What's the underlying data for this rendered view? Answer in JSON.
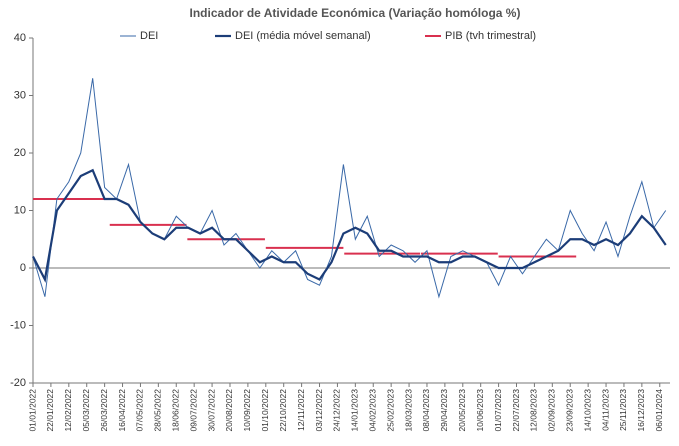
{
  "chart_data": {
    "type": "line",
    "title": "Indicador de Atividade Económica (Variação homóloga %)",
    "x": [
      "01/01/2022",
      "15/01/2022",
      "29/01/2022",
      "12/02/2022",
      "26/02/2022",
      "12/03/2022",
      "26/03/2022",
      "09/04/2022",
      "23/04/2022",
      "07/05/2022",
      "21/05/2022",
      "04/06/2022",
      "18/06/2022",
      "02/07/2022",
      "16/07/2022",
      "30/07/2022",
      "13/08/2022",
      "27/08/2022",
      "10/09/2022",
      "24/09/2022",
      "08/10/2022",
      "22/10/2022",
      "05/11/2022",
      "19/11/2022",
      "03/12/2022",
      "17/12/2022",
      "31/12/2022",
      "14/01/2023",
      "28/01/2023",
      "11/02/2023",
      "25/02/2023",
      "11/03/2023",
      "25/03/2023",
      "08/04/2023",
      "22/04/2023",
      "06/05/2023",
      "20/05/2023",
      "03/06/2023",
      "17/06/2023",
      "01/07/2023",
      "15/07/2023",
      "29/07/2023",
      "12/08/2023",
      "26/08/2023",
      "09/09/2023",
      "23/09/2023",
      "07/10/2023",
      "21/10/2023",
      "04/11/2023",
      "18/11/2023",
      "02/12/2023",
      "16/12/2023",
      "30/12/2023",
      "13/01/2024"
    ],
    "series": [
      {
        "name": "DEI",
        "color": "#3a69a8",
        "width": 1,
        "values": [
          2,
          -5,
          12,
          15,
          20,
          33,
          14,
          12,
          18,
          8,
          6,
          5,
          9,
          7,
          6,
          10,
          4,
          6,
          3,
          0,
          3,
          1,
          3,
          -2,
          -3,
          2,
          18,
          5,
          9,
          2,
          4,
          3,
          1,
          3,
          -5,
          2,
          3,
          2,
          1,
          -3,
          2,
          -1,
          2,
          5,
          3,
          10,
          6,
          3,
          8,
          2,
          9,
          15,
          7,
          10
        ]
      },
      {
        "name": "DEI (média móvel semanal)",
        "color": "#1c3d78",
        "width": 2.2,
        "values": [
          2,
          -2,
          10,
          13,
          16,
          17,
          12,
          12,
          11,
          8,
          6,
          5,
          7,
          7,
          6,
          7,
          5,
          5,
          3,
          1,
          2,
          1,
          1,
          -1,
          -2,
          1,
          6,
          7,
          6,
          3,
          3,
          2,
          2,
          2,
          1,
          1,
          2,
          2,
          1,
          0,
          0,
          0,
          1,
          2,
          3,
          5,
          5,
          4,
          5,
          4,
          6,
          9,
          7,
          4
        ]
      }
    ],
    "steps": {
      "name": "PIB (tvh trimestral)",
      "color": "#d9304f",
      "segments": [
        {
          "start": "01/01/2022",
          "end": "31/03/2022",
          "value": 12
        },
        {
          "start": "01/04/2022",
          "end": "30/06/2022",
          "value": 7.5
        },
        {
          "start": "01/07/2022",
          "end": "30/09/2022",
          "value": 5
        },
        {
          "start": "01/10/2022",
          "end": "31/12/2022",
          "value": 3.5
        },
        {
          "start": "01/01/2023",
          "end": "31/03/2023",
          "value": 2.5
        },
        {
          "start": "01/04/2023",
          "end": "30/06/2023",
          "value": 2.5
        },
        {
          "start": "01/07/2023",
          "end": "30/09/2023",
          "value": 2
        }
      ]
    },
    "xlim": [
      "01/01/2022",
      "18/01/2024"
    ],
    "xticks": [
      "01/01/2022",
      "22/01/2022",
      "12/02/2022",
      "05/03/2022",
      "26/03/2022",
      "16/04/2022",
      "07/05/2022",
      "28/05/2022",
      "18/06/2022",
      "09/07/2022",
      "30/07/2022",
      "20/08/2022",
      "10/09/2022",
      "01/10/2022",
      "22/10/2022",
      "12/11/2022",
      "03/12/2022",
      "24/12/2022",
      "14/01/2023",
      "04/02/2023",
      "25/02/2023",
      "18/03/2023",
      "08/04/2023",
      "29/04/2023",
      "20/05/2023",
      "10/06/2023",
      "01/07/2023",
      "22/07/2023",
      "12/08/2023",
      "02/09/2023",
      "23/09/2023",
      "14/10/2023",
      "04/11/2023",
      "25/11/2023",
      "16/12/2023",
      "06/01/2024"
    ],
    "ylim": [
      -20,
      40
    ],
    "yticks": [
      -20,
      -10,
      0,
      10,
      20,
      30,
      40
    ]
  }
}
